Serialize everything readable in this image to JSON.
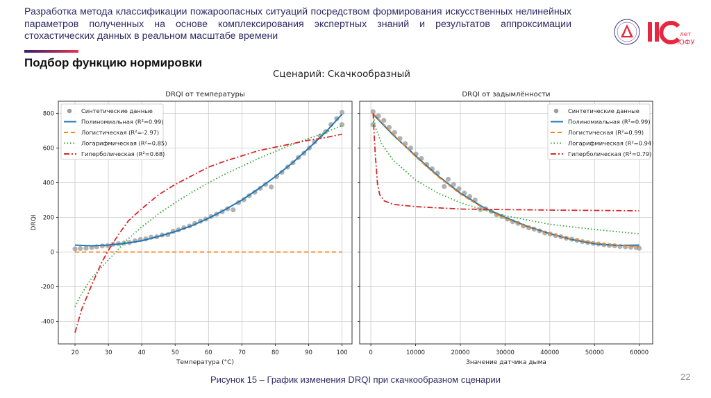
{
  "header": {
    "title": "Разработка метода классификации пожароопасных ситуаций посредством формирования искусственных нелинейных параметров полученных на основе комплексирования экспертных знаний и  результатов аппроксимации стохастических данных в реальном масштабе времени",
    "section_title": "Подбор функцию нормировки",
    "accent_gradient": [
      "#3b1d6e",
      "#e8334a"
    ]
  },
  "logos": {
    "university_seal_text": "ЮЖНЫЙ ФЕДЕРАЛЬНЫЙ УНИВЕРСИТЕТ",
    "anniversary_number": "110",
    "anniversary_text_1": "лет",
    "anniversary_text_2": "ЮФУ",
    "brand_color": "#e5283f"
  },
  "figure": {
    "suptitle": "Сценарий: Скачкообразный"
  },
  "footer": {
    "caption": "Рисунок 15 – График изменения DRQI при скачкообразном сценарии",
    "page_number": "22"
  },
  "colors": {
    "synthetic": "#9e9e9e",
    "polynomial": "#1f77b4",
    "logistic": "#ff7f0e",
    "logarithmic": "#2ca02c",
    "hyperbolic": "#d62728"
  },
  "chart_data": [
    {
      "type": "line",
      "title": "DRQI от температуры",
      "xlabel": "Температура (°C)",
      "ylabel": "DRQI",
      "xlim": [
        15,
        103
      ],
      "ylim": [
        -530,
        870
      ],
      "xticks": [
        20,
        30,
        40,
        50,
        60,
        70,
        80,
        90,
        100
      ],
      "yticks": [
        -400,
        -200,
        0,
        200,
        400,
        600,
        800
      ],
      "grid": true,
      "legend": "top-left",
      "series": [
        {
          "name": "Синтетические данные",
          "kind": "scatter",
          "color": "#9e9e9e",
          "points": [
            [
              20,
              18
            ],
            [
              21.6,
              20
            ],
            [
              23.3,
              22
            ],
            [
              25,
              26
            ],
            [
              26.5,
              30
            ],
            [
              28.2,
              35
            ],
            [
              29.8,
              37
            ],
            [
              31.4,
              45
            ],
            [
              33,
              48
            ],
            [
              34.7,
              52
            ],
            [
              36.3,
              55
            ],
            [
              38,
              65
            ],
            [
              39.6,
              72
            ],
            [
              41.2,
              76
            ],
            [
              42.8,
              85
            ],
            [
              44.5,
              88
            ],
            [
              46.1,
              98
            ],
            [
              47.8,
              100
            ],
            [
              49.4,
              120
            ],
            [
              51,
              128
            ],
            [
              52.6,
              140
            ],
            [
              54.3,
              150
            ],
            [
              55.9,
              165
            ],
            [
              57.6,
              178
            ],
            [
              59.2,
              190
            ],
            [
              60.8,
              205
            ],
            [
              62.4,
              218
            ],
            [
              64.1,
              232
            ],
            [
              65.7,
              250
            ],
            [
              67.4,
              243
            ],
            [
              69,
              285
            ],
            [
              70.6,
              302
            ],
            [
              72.2,
              325
            ],
            [
              73.9,
              345
            ],
            [
              75.5,
              368
            ],
            [
              77.1,
              390
            ],
            [
              78.8,
              375
            ],
            [
              80.4,
              435
            ],
            [
              82,
              460
            ],
            [
              83.7,
              490
            ],
            [
              85.3,
              515
            ],
            [
              86.9,
              545
            ],
            [
              88.6,
              570
            ],
            [
              90.2,
              600
            ],
            [
              91.8,
              635
            ],
            [
              93.5,
              670
            ],
            [
              95.1,
              695
            ],
            [
              96.7,
              735
            ],
            [
              98.4,
              770
            ],
            [
              100,
              805
            ],
            [
              100,
              735
            ]
          ]
        },
        {
          "name": "Полиномиальная (R²=0.99)",
          "kind": "solid",
          "color": "#1f77b4",
          "points": [
            [
              20,
              40
            ],
            [
              25,
              36
            ],
            [
              30,
              40
            ],
            [
              35,
              50
            ],
            [
              40,
              65
            ],
            [
              45,
              90
            ],
            [
              50,
              118
            ],
            [
              55,
              152
            ],
            [
              60,
              195
            ],
            [
              65,
              245
            ],
            [
              70,
              300
            ],
            [
              75,
              365
            ],
            [
              80,
              435
            ],
            [
              85,
              512
            ],
            [
              90,
              598
            ],
            [
              95,
              690
            ],
            [
              100,
              795
            ]
          ]
        },
        {
          "name": "Логистическая (R²=-2.97)",
          "kind": "dashed",
          "color": "#ff7f0e",
          "points": [
            [
              20,
              0
            ],
            [
              100,
              0
            ]
          ]
        },
        {
          "name": "Логарифмическая (R²=0.85)",
          "kind": "dotted",
          "color": "#2ca02c",
          "points": [
            [
              20,
              -315
            ],
            [
              22,
              -240
            ],
            [
              25,
              -150
            ],
            [
              30,
              -45
            ],
            [
              32,
              -5
            ],
            [
              35,
              60
            ],
            [
              40,
              145
            ],
            [
              45,
              220
            ],
            [
              50,
              285
            ],
            [
              55,
              345
            ],
            [
              60,
              400
            ],
            [
              65,
              450
            ],
            [
              70,
              495
            ],
            [
              75,
              540
            ],
            [
              80,
              580
            ],
            [
              85,
              620
            ],
            [
              90,
              655
            ],
            [
              95,
              690
            ],
            [
              100,
              730
            ]
          ]
        },
        {
          "name": "Гиперболическая (R²=0.68)",
          "kind": "dashdot",
          "color": "#d62728",
          "points": [
            [
              20,
              -465
            ],
            [
              22,
              -330
            ],
            [
              25,
              -190
            ],
            [
              28,
              -60
            ],
            [
              30,
              10
            ],
            [
              33,
              100
            ],
            [
              36,
              180
            ],
            [
              40,
              250
            ],
            [
              45,
              330
            ],
            [
              50,
              390
            ],
            [
              55,
              440
            ],
            [
              60,
              490
            ],
            [
              65,
              525
            ],
            [
              70,
              555
            ],
            [
              75,
              585
            ],
            [
              80,
              605
            ],
            [
              85,
              625
            ],
            [
              90,
              645
            ],
            [
              95,
              660
            ],
            [
              100,
              680
            ]
          ]
        }
      ]
    },
    {
      "type": "line",
      "title": "DRQI от задымлённости",
      "xlabel": "Значение датчика дыма",
      "ylabel": "",
      "xlim": [
        -2500,
        63000
      ],
      "ylim": [
        -530,
        870
      ],
      "xticks": [
        0,
        10000,
        20000,
        30000,
        40000,
        50000,
        60000
      ],
      "yticks": [
        -400,
        -200,
        0,
        200,
        400,
        600,
        800
      ],
      "sharey": true,
      "grid": true,
      "legend": "top-right",
      "series": [
        {
          "name": "Синтетические данные",
          "kind": "scatter",
          "color": "#9e9e9e",
          "points": [
            [
              500,
              810
            ],
            [
              500,
              735
            ],
            [
              1700,
              785
            ],
            [
              2900,
              760
            ],
            [
              4100,
              720
            ],
            [
              5300,
              690
            ],
            [
              6500,
              655
            ],
            [
              7700,
              625
            ],
            [
              8900,
              600
            ],
            [
              10100,
              565
            ],
            [
              11300,
              540
            ],
            [
              12500,
              505
            ],
            [
              13700,
              480
            ],
            [
              14900,
              455
            ],
            [
              16400,
              378
            ],
            [
              17300,
              420
            ],
            [
              18500,
              390
            ],
            [
              19700,
              365
            ],
            [
              20900,
              340
            ],
            [
              22100,
              320
            ],
            [
              23300,
              300
            ],
            [
              24500,
              245
            ],
            [
              25700,
              250
            ],
            [
              26900,
              235
            ],
            [
              28100,
              215
            ],
            [
              29300,
              205
            ],
            [
              30500,
              190
            ],
            [
              31700,
              175
            ],
            [
              32900,
              165
            ],
            [
              34100,
              150
            ],
            [
              35300,
              140
            ],
            [
              36500,
              132
            ],
            [
              37700,
              122
            ],
            [
              38900,
              110
            ],
            [
              40100,
              104
            ],
            [
              41300,
              95
            ],
            [
              42500,
              88
            ],
            [
              43700,
              80
            ],
            [
              44900,
              74
            ],
            [
              46100,
              68
            ],
            [
              47300,
              60
            ],
            [
              48500,
              55
            ],
            [
              49700,
              50
            ],
            [
              50900,
              46
            ],
            [
              52100,
              42
            ],
            [
              53300,
              38
            ],
            [
              54500,
              36
            ],
            [
              55700,
              32
            ],
            [
              56900,
              30
            ],
            [
              58100,
              28
            ],
            [
              59300,
              26
            ],
            [
              60000,
              22
            ]
          ]
        },
        {
          "name": "Полиномиальная (R²=0.99)",
          "kind": "solid",
          "color": "#1f77b4",
          "points": [
            [
              500,
              795
            ],
            [
              5000,
              675
            ],
            [
              10000,
              555
            ],
            [
              15000,
              440
            ],
            [
              20000,
              340
            ],
            [
              25000,
              260
            ],
            [
              30000,
              200
            ],
            [
              35000,
              148
            ],
            [
              40000,
              106
            ],
            [
              45000,
              72
            ],
            [
              50000,
              48
            ],
            [
              55000,
              38
            ],
            [
              60000,
              40
            ]
          ]
        },
        {
          "name": "Логистическая (R²=0.99)",
          "kind": "dashed",
          "color": "#ff7f0e",
          "points": [
            [
              500,
              800
            ],
            [
              5000,
              680
            ],
            [
              10000,
              550
            ],
            [
              15000,
              435
            ],
            [
              20000,
              335
            ],
            [
              25000,
              255
            ],
            [
              30000,
              195
            ],
            [
              35000,
              145
            ],
            [
              40000,
              105
            ],
            [
              45000,
              75
            ],
            [
              50000,
              52
            ],
            [
              55000,
              40
            ],
            [
              60000,
              30
            ]
          ]
        },
        {
          "name": "Логарифмическая (R²=0.94)",
          "kind": "dotted",
          "color": "#2ca02c",
          "points": [
            [
              500,
              800
            ],
            [
              1000,
              720
            ],
            [
              2500,
              620
            ],
            [
              5000,
              530
            ],
            [
              10000,
              415
            ],
            [
              15000,
              340
            ],
            [
              20000,
              285
            ],
            [
              25000,
              245
            ],
            [
              30000,
              210
            ],
            [
              35000,
              185
            ],
            [
              40000,
              160
            ],
            [
              45000,
              145
            ],
            [
              50000,
              130
            ],
            [
              55000,
              118
            ],
            [
              60000,
              105
            ]
          ]
        },
        {
          "name": "Гиперболическая (R²=0.79)",
          "kind": "dashdot",
          "color": "#d62728",
          "points": [
            [
              500,
              800
            ],
            [
              800,
              650
            ],
            [
              1000,
              560
            ],
            [
              1500,
              390
            ],
            [
              2000,
              330
            ],
            [
              3000,
              295
            ],
            [
              5000,
              275
            ],
            [
              10000,
              262
            ],
            [
              20000,
              248
            ],
            [
              30000,
              245
            ],
            [
              40000,
              242
            ],
            [
              50000,
              240
            ],
            [
              60000,
              238
            ]
          ]
        }
      ]
    }
  ]
}
